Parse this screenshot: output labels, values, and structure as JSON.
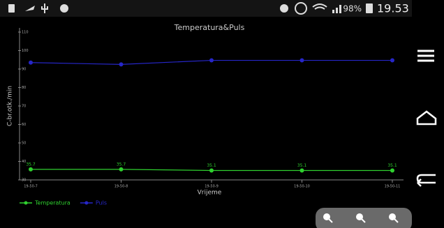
{
  "status_bar": {
    "battery": "98%",
    "time": "19.53"
  },
  "chart_data": {
    "type": "line",
    "title": "Temperatura&Puls",
    "y_label": "C-br.otk./min",
    "x_label": "Vrijeme",
    "categories": [
      "19-50-7",
      "19-50-8",
      "19-50-9",
      "19-50-10",
      "19-50-11"
    ],
    "series": [
      {
        "name": "Temperatura",
        "color": "#2fd02f",
        "values": [
          35.7,
          35.7,
          35.1,
          35.1,
          35.1
        ],
        "show_labels": true
      },
      {
        "name": "Puls",
        "color": "#2626c8",
        "values": [
          93.5,
          92.5,
          94.7,
          94.7,
          94.7
        ],
        "show_labels": false
      }
    ],
    "ylim": [
      30,
      110
    ],
    "yticks": [
      30,
      40,
      50,
      60,
      70,
      80,
      90,
      100,
      110
    ],
    "grid": false,
    "legend": "bottom-left"
  }
}
